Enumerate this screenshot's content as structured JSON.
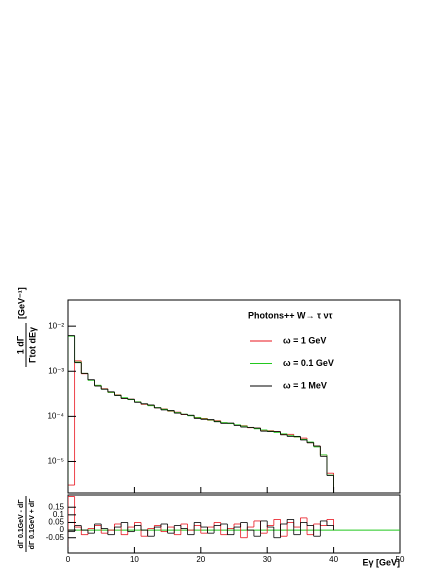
{
  "chart_data": [
    {
      "type": "histogram",
      "legend_title": "Photons++   W→ τ ντ",
      "legend_position": "top-right",
      "y_label_numerator": "1   dΓ",
      "y_label_denominator": "Γtot dEγ",
      "y_label_unit": "[GeV⁻¹]",
      "log_y": true,
      "xlim": [
        0,
        50
      ],
      "ylim": [
        2e-06,
        0.038
      ],
      "yticks": [
        {
          "value": 0.01,
          "label": "10⁻²"
        },
        {
          "value": 0.001,
          "label": "10⁻³"
        },
        {
          "value": 0.0001,
          "label": "10⁻⁴"
        },
        {
          "value": 1e-05,
          "label": "10⁻⁵"
        }
      ],
      "bins": [
        0,
        1,
        2,
        3,
        4,
        5,
        6,
        7,
        8,
        9,
        10,
        11,
        12,
        13,
        14,
        15,
        16,
        17,
        18,
        19,
        20,
        21,
        22,
        23,
        24,
        25,
        26,
        27,
        28,
        29,
        30,
        31,
        32,
        33,
        34,
        35,
        36,
        37,
        38,
        39,
        40
      ],
      "series": [
        {
          "name": "ω = 1 GeV",
          "color": "#e8141e",
          "values": [
            3e-06,
            0.0017,
            0.00088,
            0.00064,
            0.00048,
            0.00041,
            0.00034,
            0.0003,
            0.00025,
            0.00024,
            0.00021,
            0.000185,
            0.000175,
            0.000155,
            0.000146,
            0.00013,
            0.000124,
            0.00011,
            0.000105,
            9.4e-05,
            9e-05,
            8.2e-05,
            8e-05,
            7.1e-05,
            7e-05,
            6.4e-05,
            6.2e-05,
            5.6e-05,
            5.5e-05,
            4.9e-05,
            4.8e-05,
            4.6e-05,
            4e-05,
            4e-05,
            3.5e-05,
            3.3e-05,
            2.6e-05,
            2.2e-05,
            1.4e-05,
            5.5e-06
          ]
        },
        {
          "name": "ω = 0.1 GeV",
          "color": "#22c81e",
          "values": [
            0.006,
            0.0016,
            0.0009,
            0.00063,
            0.00049,
            0.0004,
            0.00034,
            0.000295,
            0.00026,
            0.000235,
            0.00021,
            0.00019,
            0.000172,
            0.000157,
            0.000144,
            0.000132,
            0.000122,
            0.000112,
            0.000103,
            9.5e-05,
            8.8e-05,
            8.3e-05,
            7.8e-05,
            7.3e-05,
            6.9e-05,
            6.5e-05,
            6.1e-05,
            5.7e-05,
            5.3e-05,
            5e-05,
            4.7e-05,
            4.4e-05,
            4.1e-05,
            3.8e-05,
            3.5e-05,
            3.1e-05,
            2.7e-05,
            2.1e-05,
            1.4e-05,
            5e-06
          ]
        },
        {
          "name": "ω = 1 MeV",
          "color": "#000000",
          "values": [
            0.0062,
            0.00155,
            0.0009,
            0.00065,
            0.00047,
            0.0004,
            0.00035,
            0.00029,
            0.00025,
            0.00024,
            0.000205,
            0.00019,
            0.000179,
            0.000154,
            0.000139,
            0.000135,
            0.000118,
            0.000111,
            0.000106,
            9e-05,
            8.6e-05,
            8.5e-05,
            7.6e-05,
            7e-05,
            7.1e-05,
            6.3e-05,
            5.8e-05,
            5.7e-05,
            5.5e-05,
            4.7e-05,
            4.6e-05,
            4.6e-05,
            3.9e-05,
            3.6e-05,
            3.6e-05,
            3e-05,
            2.6e-05,
            2.2e-05,
            1.3e-05,
            4.9e-06
          ]
        }
      ]
    },
    {
      "type": "histogram",
      "x_label": "Eγ [GeV]",
      "y_label_numerator": "dΓ 0.1GeV - dΓ",
      "y_label_denominator": "dΓ 0.1GeV + dΓ",
      "xlim": [
        0,
        50
      ],
      "xticks": [
        0,
        10,
        20,
        30,
        40,
        50
      ],
      "ylim": [
        -0.15,
        0.23
      ],
      "yticks": [
        -0.05,
        0,
        0.05,
        0.1,
        0.15
      ],
      "baseline": 0,
      "baseline_color": "#22c81e",
      "bins": [
        0,
        1,
        2,
        3,
        4,
        5,
        6,
        7,
        8,
        9,
        10,
        11,
        12,
        13,
        14,
        15,
        16,
        17,
        18,
        19,
        20,
        21,
        22,
        23,
        24,
        25,
        26,
        27,
        28,
        29,
        30,
        31,
        32,
        33,
        34,
        35,
        36,
        37,
        38,
        39,
        40
      ],
      "series": [
        {
          "color": "#e8141e",
          "values": [
            0.22,
            0.02,
            -0.03,
            0.01,
            0.03,
            -0.02,
            0,
            0.04,
            -0.03,
            0.02,
            0.05,
            -0.04,
            0.01,
            0.03,
            -0.01,
            0.02,
            -0.03,
            0.04,
            0,
            0.03,
            -0.02,
            0.02,
            0.05,
            -0.03,
            0.01,
            0.04,
            -0.05,
            0.02,
            0.06,
            -0.02,
            0.03,
            0.07,
            -0.04,
            0.05,
            0.02,
            0.08,
            -0.03,
            0.04,
            0.03,
            0.07
          ]
        },
        {
          "color": "#000000",
          "values": [
            -0.01,
            0.03,
            0,
            -0.02,
            0.04,
            0.01,
            -0.03,
            0.02,
            0.05,
            -0.01,
            0.03,
            0,
            -0.04,
            0.02,
            0.04,
            -0.02,
            0.03,
            0.01,
            -0.03,
            0.05,
            0.02,
            -0.02,
            0.03,
            0.04,
            -0.03,
            0.02,
            0.05,
            0,
            -0.04,
            0.06,
            0.02,
            -0.05,
            0.04,
            0.07,
            -0.03,
            0.05,
            0.03,
            -0.04,
            0.06,
            0.03
          ]
        }
      ]
    }
  ]
}
